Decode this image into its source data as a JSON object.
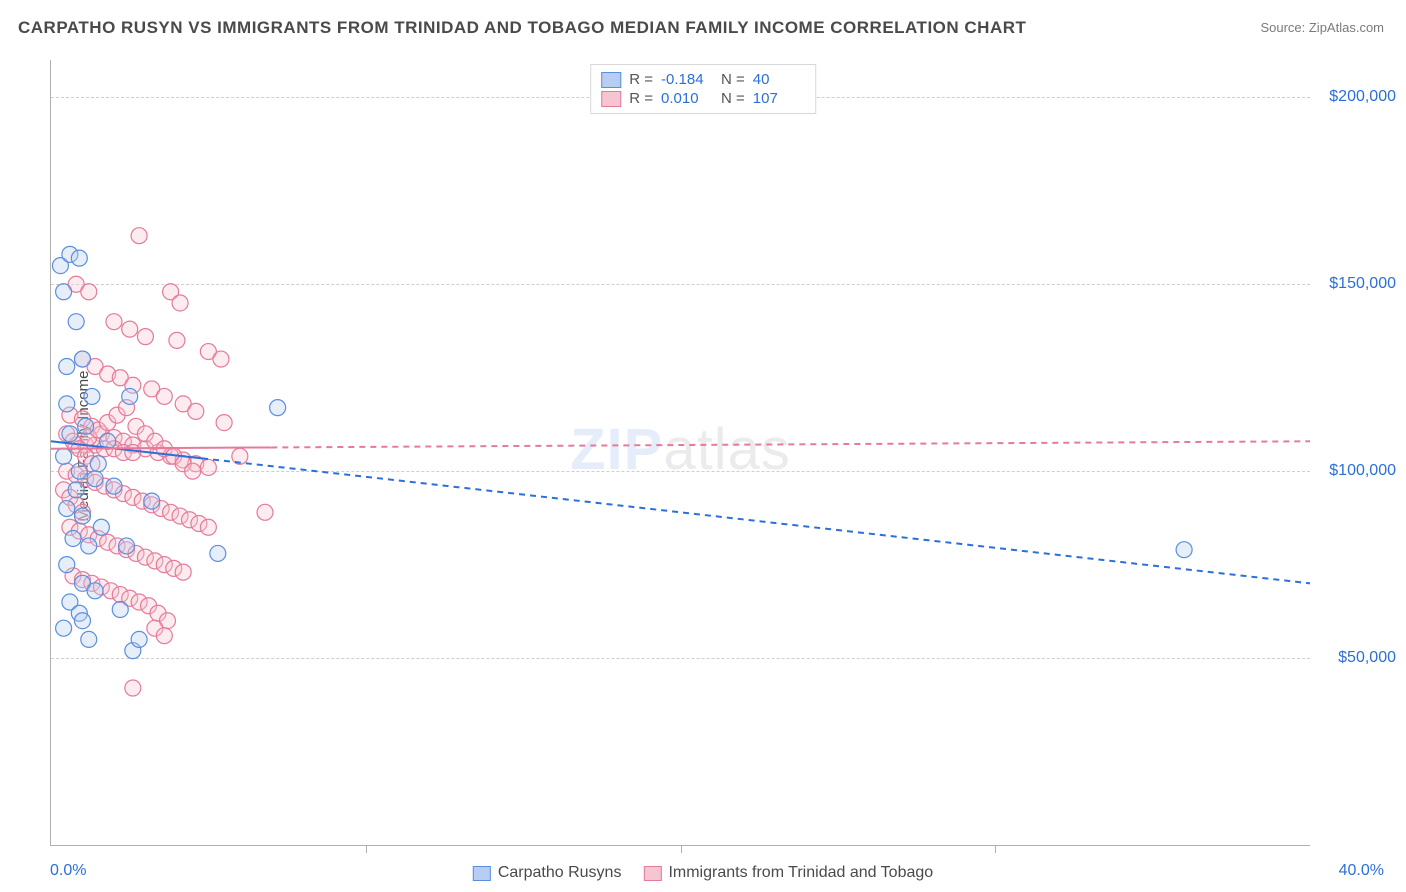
{
  "title": "CARPATHO RUSYN VS IMMIGRANTS FROM TRINIDAD AND TOBAGO MEDIAN FAMILY INCOME CORRELATION CHART",
  "source": "Source: ZipAtlas.com",
  "ylabel": "Median Family Income",
  "watermark": {
    "a": "ZIP",
    "b": "atlas"
  },
  "chart": {
    "type": "scatter",
    "background_color": "#ffffff",
    "grid_color": "#cfcfcf",
    "axis_color": "#b0b0b0",
    "xlim": [
      0,
      40
    ],
    "ylim": [
      0,
      210000
    ],
    "x_tick_step": 10,
    "x_min_label": "0.0%",
    "x_max_label": "40.0%",
    "y_ticks": [
      {
        "v": 50000,
        "label": "$50,000"
      },
      {
        "v": 100000,
        "label": "$100,000"
      },
      {
        "v": 150000,
        "label": "$150,000"
      },
      {
        "v": 200000,
        "label": "$200,000"
      }
    ],
    "value_color": "#2a6fdb",
    "marker_radius": 8,
    "marker_stroke_width": 1.2,
    "marker_fill_opacity": 0.35,
    "series": [
      {
        "name": "Carpatho Rusyns",
        "color_fill": "#b7cdf1",
        "color_stroke": "#5a8fe0",
        "trend_color": "#2a6fdb",
        "trend_solid_end_x": 4.8,
        "trend": {
          "x1": 0,
          "y1": 108000,
          "x2": 40,
          "y2": 70000
        },
        "r": "-0.184",
        "n": "40",
        "points": [
          [
            0.3,
            155000
          ],
          [
            0.6,
            158000
          ],
          [
            0.9,
            157000
          ],
          [
            0.4,
            148000
          ],
          [
            0.8,
            140000
          ],
          [
            0.5,
            128000
          ],
          [
            1.0,
            130000
          ],
          [
            1.3,
            120000
          ],
          [
            2.5,
            120000
          ],
          [
            7.2,
            117000
          ],
          [
            0.6,
            110000
          ],
          [
            1.1,
            112000
          ],
          [
            1.8,
            108000
          ],
          [
            0.4,
            104000
          ],
          [
            0.9,
            100000
          ],
          [
            1.4,
            98000
          ],
          [
            2.0,
            96000
          ],
          [
            3.2,
            92000
          ],
          [
            0.5,
            90000
          ],
          [
            1.0,
            88000
          ],
          [
            1.6,
            85000
          ],
          [
            0.7,
            82000
          ],
          [
            1.2,
            80000
          ],
          [
            2.4,
            80000
          ],
          [
            5.3,
            78000
          ],
          [
            0.5,
            75000
          ],
          [
            1.0,
            70000
          ],
          [
            1.4,
            68000
          ],
          [
            0.6,
            65000
          ],
          [
            0.9,
            62000
          ],
          [
            2.2,
            63000
          ],
          [
            0.4,
            58000
          ],
          [
            1.0,
            60000
          ],
          [
            1.2,
            55000
          ],
          [
            2.6,
            52000
          ],
          [
            2.8,
            55000
          ],
          [
            36.0,
            79000
          ],
          [
            0.5,
            118000
          ],
          [
            0.8,
            95000
          ],
          [
            1.5,
            102000
          ]
        ]
      },
      {
        "name": "Immigrants from Trinidad and Tobago",
        "color_fill": "#f7c5d2",
        "color_stroke": "#e57a9a",
        "trend_color": "#e57a9a",
        "trend_solid_end_x": 7.0,
        "trend": {
          "x1": 0,
          "y1": 106000,
          "x2": 40,
          "y2": 108000
        },
        "r": "0.010",
        "n": "107",
        "points": [
          [
            2.8,
            163000
          ],
          [
            0.8,
            150000
          ],
          [
            1.2,
            148000
          ],
          [
            3.8,
            148000
          ],
          [
            4.1,
            145000
          ],
          [
            2.0,
            140000
          ],
          [
            2.5,
            138000
          ],
          [
            3.0,
            136000
          ],
          [
            4.0,
            135000
          ],
          [
            5.0,
            132000
          ],
          [
            5.4,
            130000
          ],
          [
            1.0,
            130000
          ],
          [
            1.4,
            128000
          ],
          [
            1.8,
            126000
          ],
          [
            2.2,
            125000
          ],
          [
            2.6,
            123000
          ],
          [
            3.2,
            122000
          ],
          [
            3.6,
            120000
          ],
          [
            4.2,
            118000
          ],
          [
            4.6,
            116000
          ],
          [
            0.6,
            115000
          ],
          [
            1.0,
            114000
          ],
          [
            1.3,
            112000
          ],
          [
            1.6,
            110000
          ],
          [
            2.0,
            109000
          ],
          [
            2.3,
            108000
          ],
          [
            2.6,
            107000
          ],
          [
            3.0,
            106000
          ],
          [
            3.4,
            105000
          ],
          [
            3.8,
            104000
          ],
          [
            4.2,
            103000
          ],
          [
            4.6,
            102000
          ],
          [
            5.0,
            101000
          ],
          [
            5.5,
            113000
          ],
          [
            6.0,
            104000
          ],
          [
            0.5,
            100000
          ],
          [
            0.8,
            99000
          ],
          [
            1.1,
            98000
          ],
          [
            1.4,
            97000
          ],
          [
            1.7,
            96000
          ],
          [
            2.0,
            95000
          ],
          [
            2.3,
            94000
          ],
          [
            2.6,
            93000
          ],
          [
            2.9,
            92000
          ],
          [
            3.2,
            91000
          ],
          [
            3.5,
            90000
          ],
          [
            3.8,
            89000
          ],
          [
            4.1,
            88000
          ],
          [
            4.4,
            87000
          ],
          [
            4.7,
            86000
          ],
          [
            5.0,
            85000
          ],
          [
            6.8,
            89000
          ],
          [
            0.6,
            85000
          ],
          [
            0.9,
            84000
          ],
          [
            1.2,
            83000
          ],
          [
            1.5,
            82000
          ],
          [
            1.8,
            81000
          ],
          [
            2.1,
            80000
          ],
          [
            2.4,
            79000
          ],
          [
            2.7,
            78000
          ],
          [
            3.0,
            77000
          ],
          [
            3.3,
            76000
          ],
          [
            3.6,
            75000
          ],
          [
            3.9,
            74000
          ],
          [
            4.2,
            73000
          ],
          [
            0.7,
            72000
          ],
          [
            1.0,
            71000
          ],
          [
            1.3,
            70000
          ],
          [
            1.6,
            69000
          ],
          [
            1.9,
            68000
          ],
          [
            2.2,
            67000
          ],
          [
            2.5,
            66000
          ],
          [
            2.8,
            65000
          ],
          [
            3.1,
            64000
          ],
          [
            3.4,
            62000
          ],
          [
            3.7,
            60000
          ],
          [
            3.3,
            58000
          ],
          [
            3.6,
            56000
          ],
          [
            2.6,
            42000
          ],
          [
            0.8,
            107000
          ],
          [
            1.1,
            107000
          ],
          [
            1.4,
            107000
          ],
          [
            1.7,
            106000
          ],
          [
            2.0,
            106000
          ],
          [
            2.3,
            105000
          ],
          [
            2.6,
            105000
          ],
          [
            0.5,
            110000
          ],
          [
            0.7,
            108000
          ],
          [
            0.9,
            106000
          ],
          [
            1.1,
            104000
          ],
          [
            1.3,
            102000
          ],
          [
            0.4,
            95000
          ],
          [
            0.6,
            93000
          ],
          [
            0.8,
            91000
          ],
          [
            1.0,
            89000
          ],
          [
            1.2,
            109000
          ],
          [
            1.5,
            111000
          ],
          [
            1.8,
            113000
          ],
          [
            2.1,
            115000
          ],
          [
            2.4,
            117000
          ],
          [
            2.7,
            112000
          ],
          [
            3.0,
            110000
          ],
          [
            3.3,
            108000
          ],
          [
            3.6,
            106000
          ],
          [
            3.9,
            104000
          ],
          [
            4.2,
            102000
          ],
          [
            4.5,
            100000
          ]
        ]
      }
    ]
  },
  "legend_top": {
    "r_label": "R =",
    "n_label": "N ="
  },
  "legend_bottom_series_a": "Carpatho Rusyns",
  "legend_bottom_series_b": "Immigrants from Trinidad and Tobago"
}
